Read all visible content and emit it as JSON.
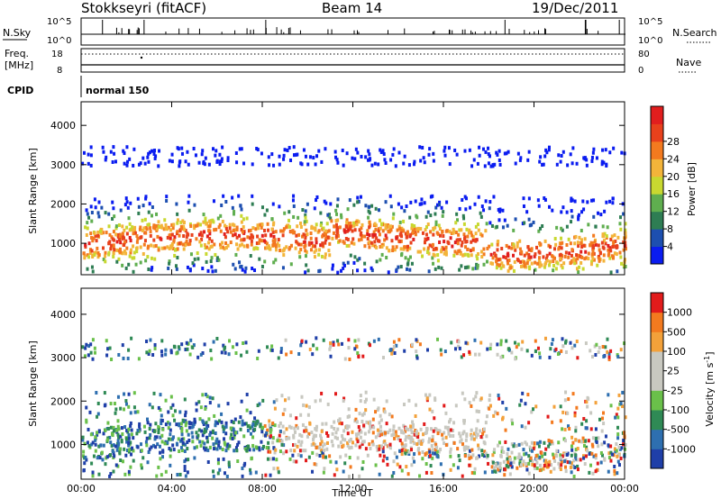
{
  "header": {
    "title": "Stokkseyri (fitACF)",
    "beam": "Beam 14",
    "date": "19/Dec/2011"
  },
  "status_panels": {
    "nsky_label": "N.Sky",
    "nsearch_label": "N.Search",
    "nsky_ticks": [
      "10^5",
      "10^0"
    ],
    "nsearch_ticks": [
      "10^5",
      "10^0"
    ],
    "freq_label_1": "Freq.",
    "freq_label_2": "[MHz]",
    "freq_ticks": [
      "18",
      "8"
    ],
    "nave_label": "Nave",
    "nave_ticks": [
      "80",
      "0"
    ],
    "cpid_label": "CPID",
    "cpid_value": "normal 150"
  },
  "chart_data": [
    {
      "type": "heatmap",
      "panel": "power",
      "ylabel": "Slant Range [km]",
      "xlabel": "Time UT",
      "xticks": [
        "00:00",
        "04:00",
        "08:00",
        "12:00",
        "16:00",
        "20:00",
        "00:00"
      ],
      "yticks": [
        1000,
        2000,
        3000,
        4000
      ],
      "ylim": [
        200,
        4600
      ],
      "xlim_hours": [
        0,
        24
      ],
      "colorbar": {
        "label": "Power [dB]",
        "ticks": [
          4,
          8,
          12,
          16,
          20,
          24,
          28
        ],
        "colors": [
          "#0a1cf0",
          "#1d4fb0",
          "#2e7d53",
          "#5fae4f",
          "#c8d830",
          "#f3b43a",
          "#f37a1f",
          "#e8411c",
          "#e11e1e"
        ]
      }
    },
    {
      "type": "heatmap",
      "panel": "velocity",
      "ylabel": "Slant Range [km]",
      "xlabel": "Time UT",
      "xticks": [
        "00:00",
        "04:00",
        "08:00",
        "12:00",
        "16:00",
        "20:00",
        "00:00"
      ],
      "yticks": [
        1000,
        2000,
        3000,
        4000
      ],
      "ylim": [
        200,
        4600
      ],
      "xlim_hours": [
        0,
        24
      ],
      "colorbar": {
        "label": "Velocity [m s",
        "label_sup": "-1",
        "label_end": "]",
        "ticks": [
          "1000",
          "500",
          "100",
          "25",
          "-25",
          "-100",
          "-500",
          "-1000"
        ],
        "colors": [
          "#1f3fa8",
          "#2e6fb0",
          "#2f8a55",
          "#6ac04a",
          "#c8c8c0",
          "#c8c8c0",
          "#f3a13a",
          "#f37a1f",
          "#e21b1b"
        ]
      }
    }
  ]
}
